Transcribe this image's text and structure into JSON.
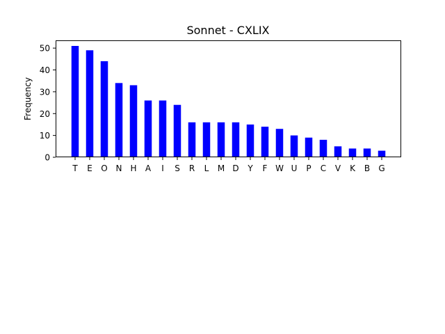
{
  "chart_data": {
    "type": "bar",
    "title": "Sonnet - CXLIX",
    "xlabel": "",
    "ylabel": "Frequency",
    "categories": [
      "T",
      "E",
      "O",
      "N",
      "H",
      "A",
      "I",
      "S",
      "R",
      "L",
      "M",
      "D",
      "Y",
      "F",
      "W",
      "U",
      "P",
      "C",
      "V",
      "K",
      "B",
      "G"
    ],
    "values": [
      51,
      49,
      44,
      34,
      33,
      26,
      26,
      24,
      16,
      16,
      16,
      16,
      15,
      14,
      13,
      10,
      9,
      8,
      5,
      4,
      4,
      3
    ],
    "ylim": [
      0,
      53.55
    ],
    "yticks": [
      0,
      10,
      20,
      30,
      40,
      50
    ],
    "bar_color": "#0000ff",
    "grid": false,
    "legend": "none"
  }
}
